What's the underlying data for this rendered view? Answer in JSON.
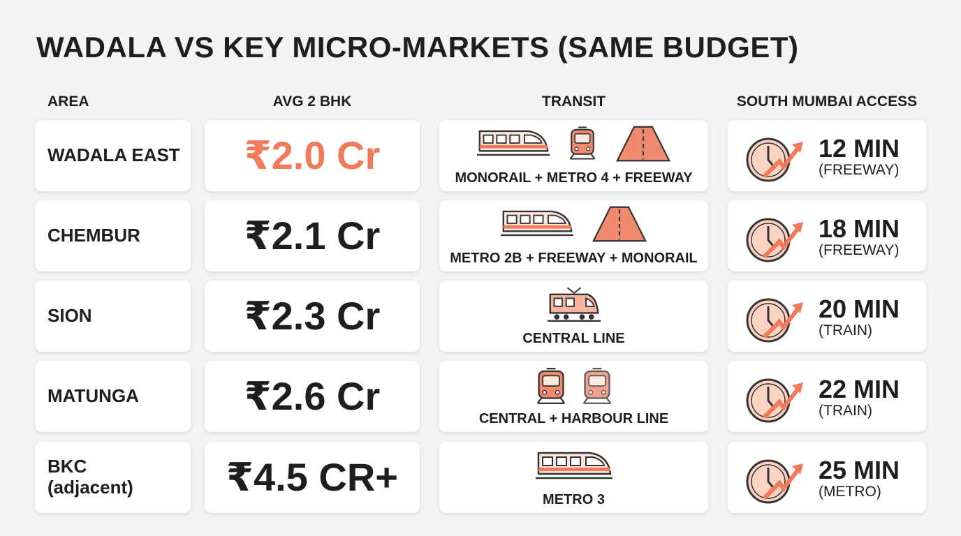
{
  "title": "WADALA VS KEY MICRO-MARKETS (SAME BUDGET)",
  "headers": [
    "AREA",
    "AVG 2 BHK",
    "TRANSIT",
    "SOUTH MUMBAI ACCESS"
  ],
  "rows": [
    {
      "area": "WADALA EAST",
      "price": "₹2.0 Cr",
      "transit": "MONORAIL + METRO 4 + FREEWAY",
      "time": "12 MIN",
      "mode": "(FREEWAY)"
    },
    {
      "area": "CHEMBUR",
      "price": "₹2.1 Cr",
      "transit": "METRO 2B + FREEWAY + MONORAIL",
      "time": "18 MIN",
      "mode": "(FREEWAY)"
    },
    {
      "area": "SION",
      "price": "₹2.3 Cr",
      "transit": "CENTRAL LINE",
      "time": "20 MIN",
      "mode": "(TRAIN)"
    },
    {
      "area": "MATUNGA",
      "price": "₹2.6 Cr",
      "transit": "CENTRAL + HARBOUR LINE",
      "time": "22 MIN",
      "mode": "(TRAIN)"
    },
    {
      "area": "BKC\n(adjacent)",
      "price": "₹4.5 CR+",
      "transit": "METRO 3",
      "time": "25 MIN",
      "mode": "(METRO)"
    }
  ]
}
